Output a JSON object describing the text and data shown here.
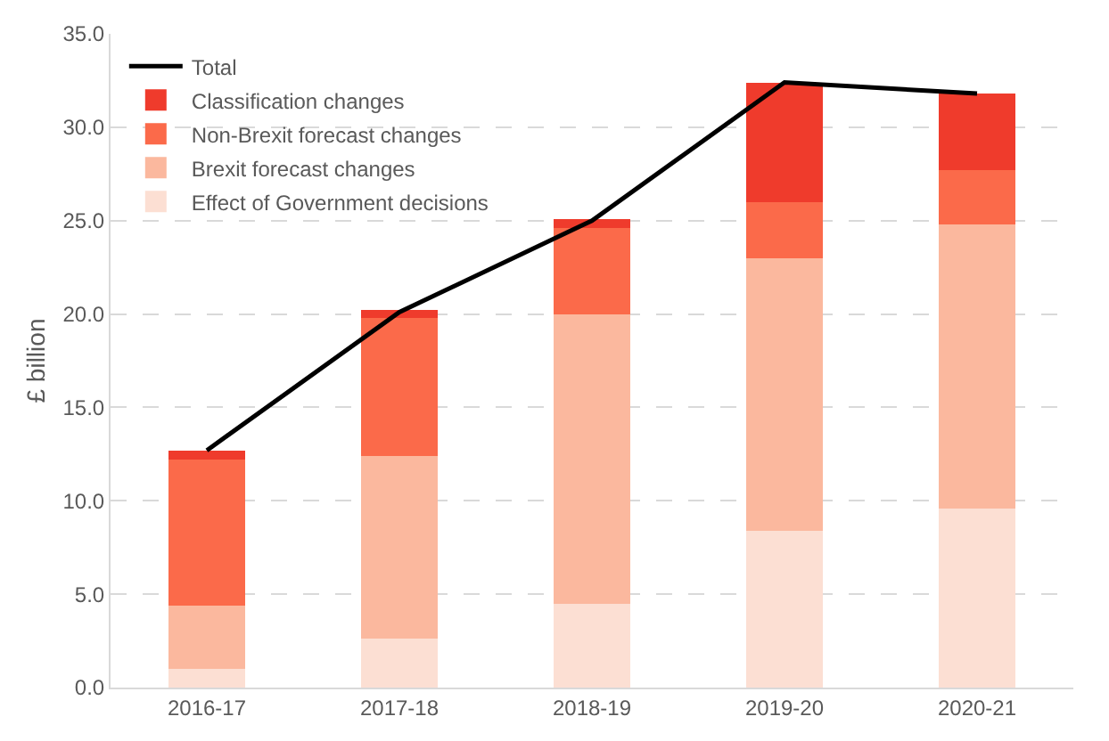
{
  "chart_data": {
    "type": "bar",
    "stacked": true,
    "ylabel": "£ billion",
    "categories": [
      "2016-17",
      "2017-18",
      "2018-19",
      "2019-20",
      "2020-21"
    ],
    "series": [
      {
        "name": "Effect of Government decisions",
        "color": "#fcdfd3",
        "values": [
          1.0,
          2.6,
          4.5,
          8.4,
          9.6
        ]
      },
      {
        "name": "Brexit forecast changes",
        "color": "#fbb89e",
        "values": [
          3.4,
          9.8,
          15.5,
          14.6,
          15.2
        ]
      },
      {
        "name": "Non-Brexit forecast changes",
        "color": "#fb6a4a",
        "values": [
          7.8,
          7.4,
          4.6,
          3.0,
          2.9
        ]
      },
      {
        "name": "Classification changes",
        "color": "#ef3b2c",
        "values": [
          0.5,
          0.4,
          0.5,
          6.4,
          4.1
        ]
      },
      {
        "name": "Total",
        "type": "line",
        "color": "#000000",
        "values": [
          12.7,
          20.1,
          25.0,
          32.4,
          31.8
        ]
      }
    ],
    "ylim": [
      0,
      35
    ],
    "yticks": [
      {
        "value": 0,
        "label": "0.0"
      },
      {
        "value": 5,
        "label": "5.0"
      },
      {
        "value": 10,
        "label": "10.0"
      },
      {
        "value": 15,
        "label": "15.0"
      },
      {
        "value": 20,
        "label": "20.0"
      },
      {
        "value": 25,
        "label": "25.0"
      },
      {
        "value": 30,
        "label": "30.0"
      },
      {
        "value": 35,
        "label": "35.0"
      }
    ],
    "grid": "y",
    "legend": "top left",
    "marker": "none",
    "line_style": "solid"
  }
}
